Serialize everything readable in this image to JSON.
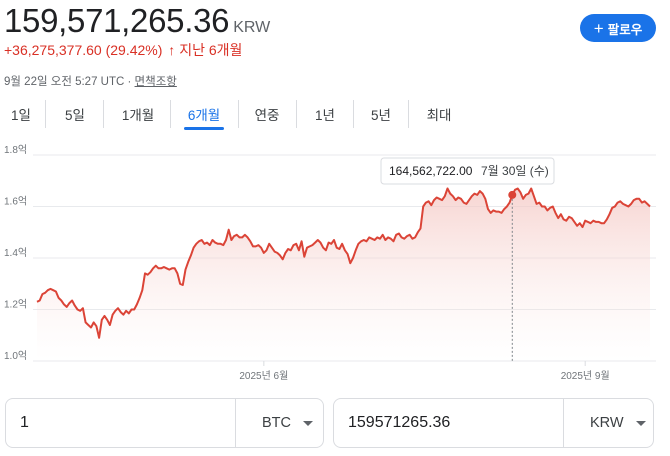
{
  "header": {
    "price": "159,571,265.36",
    "currency": "KRW",
    "change": "+36,275,377.60 (29.42%)",
    "change_arrow": "↑",
    "change_period": "지난 6개월",
    "timestamp": "9월 22일 오전 5:27 UTC · ",
    "disclaimer": "면책조항",
    "follow_label": "팔로우",
    "follow_icon": "plus-icon"
  },
  "tabs": [
    "1일",
    "5일",
    "1개월",
    "6개월",
    "연중",
    "1년",
    "5년",
    "최대"
  ],
  "active_tab": "6개월",
  "tooltip": {
    "value": "164,562,722.00",
    "date": "7월 30일 (수)"
  },
  "colors": {
    "line": "#db4437",
    "accent": "#1a73e8",
    "fill_top": "#f4c7c3"
  },
  "chart_data": {
    "type": "area",
    "ylim": [
      1.0,
      1.8
    ],
    "yticks": [
      "1.8억",
      "1.6억",
      "1.4억",
      "1.2억",
      "1.0억"
    ],
    "xticks": [
      "2025년 6월",
      "2025년 9월"
    ],
    "grid": true,
    "series": [
      {
        "values": [
          1.23,
          1.235,
          1.26,
          1.265,
          1.275,
          1.28,
          1.275,
          1.27,
          1.245,
          1.235,
          1.22,
          1.21,
          1.225,
          1.235,
          1.215,
          1.2,
          1.195,
          1.205,
          1.15,
          1.14,
          1.13,
          1.15,
          1.135,
          1.09,
          1.16,
          1.175,
          1.16,
          1.14,
          1.18,
          1.195,
          1.205,
          1.19,
          1.18,
          1.195,
          1.185,
          1.2,
          1.2,
          1.22,
          1.245,
          1.275,
          1.34,
          1.335,
          1.345,
          1.36,
          1.37,
          1.36,
          1.36,
          1.365,
          1.36,
          1.355,
          1.36,
          1.36,
          1.34,
          1.3,
          1.295,
          1.355,
          1.385,
          1.41,
          1.44,
          1.455,
          1.465,
          1.47,
          1.455,
          1.46,
          1.45,
          1.47,
          1.46,
          1.455,
          1.455,
          1.45,
          1.47,
          1.51,
          1.47,
          1.485,
          1.49,
          1.48,
          1.48,
          1.49,
          1.48,
          1.465,
          1.445,
          1.445,
          1.45,
          1.44,
          1.42,
          1.43,
          1.455,
          1.44,
          1.425,
          1.42,
          1.41,
          1.395,
          1.42,
          1.435,
          1.43,
          1.45,
          1.455,
          1.43,
          1.465,
          1.405,
          1.44,
          1.445,
          1.45,
          1.46,
          1.47,
          1.46,
          1.44,
          1.43,
          1.46,
          1.455,
          1.47,
          1.44,
          1.435,
          1.455,
          1.43,
          1.415,
          1.38,
          1.4,
          1.43,
          1.455,
          1.465,
          1.47,
          1.465,
          1.48,
          1.475,
          1.47,
          1.48,
          1.475,
          1.49,
          1.47,
          1.48,
          1.475,
          1.465,
          1.49,
          1.495,
          1.48,
          1.475,
          1.485,
          1.49,
          1.475,
          1.48,
          1.5,
          1.515,
          1.6,
          1.615,
          1.62,
          1.605,
          1.625,
          1.635,
          1.63,
          1.625,
          1.64,
          1.67,
          1.65,
          1.64,
          1.625,
          1.635,
          1.63,
          1.615,
          1.61,
          1.625,
          1.64,
          1.65,
          1.645,
          1.66,
          1.65,
          1.63,
          1.59,
          1.575,
          1.585,
          1.58,
          1.58,
          1.575,
          1.59,
          1.6,
          1.615,
          1.645,
          1.665,
          1.67,
          1.655,
          1.63,
          1.645,
          1.65,
          1.67,
          1.64,
          1.61,
          1.615,
          1.6,
          1.6,
          1.585,
          1.595,
          1.6,
          1.575,
          1.555,
          1.57,
          1.55,
          1.545,
          1.56,
          1.555,
          1.54,
          1.525,
          1.535,
          1.52,
          1.545,
          1.54,
          1.535,
          1.545,
          1.54,
          1.54,
          1.535,
          1.535,
          1.55,
          1.57,
          1.595,
          1.6,
          1.615,
          1.62,
          1.61,
          1.605,
          1.6,
          1.61,
          1.625,
          1.63,
          1.63,
          1.615,
          1.62,
          1.61,
          1.6
        ]
      }
    ]
  },
  "converter": {
    "left_value": "1",
    "left_unit": "BTC",
    "right_value": "159571265.36",
    "right_unit": "KRW"
  }
}
